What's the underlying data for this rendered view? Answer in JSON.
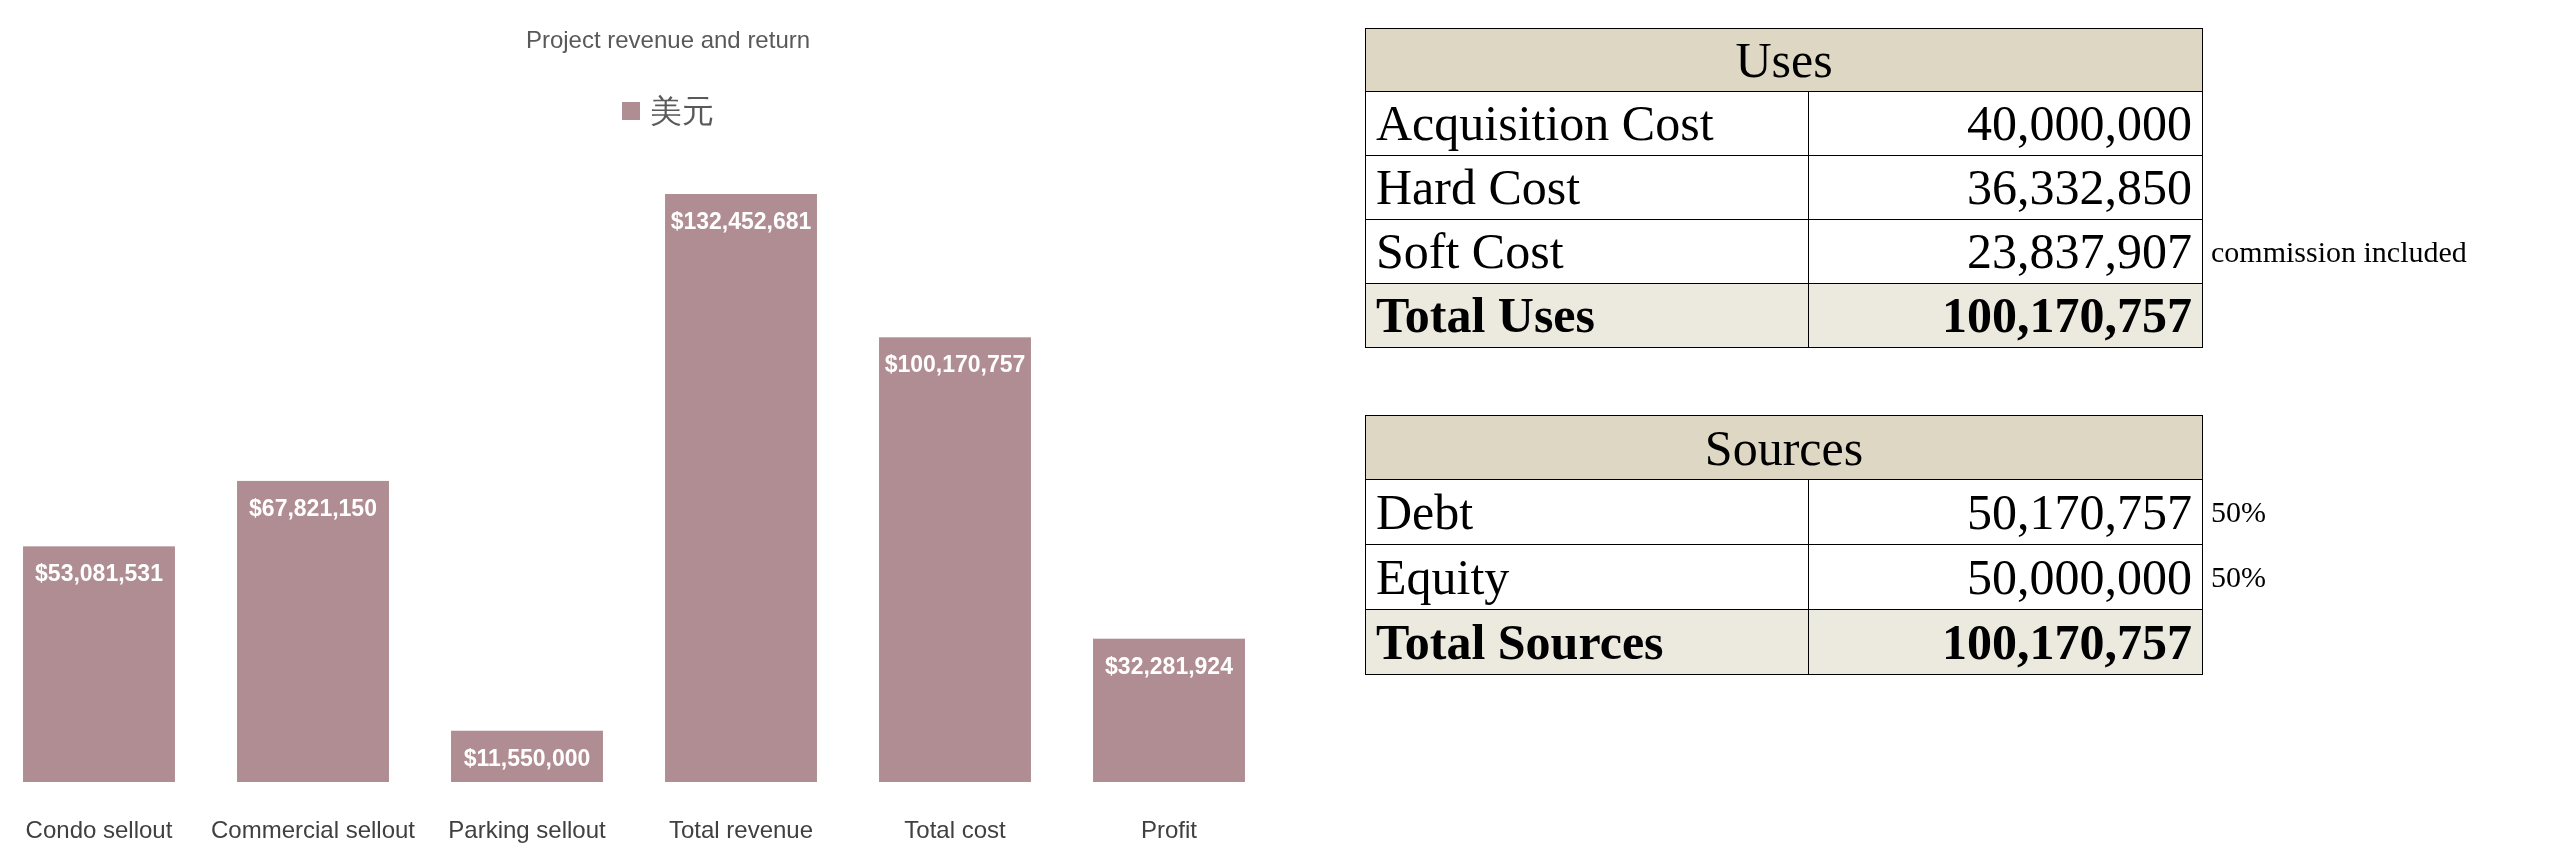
{
  "chart_data": [
    {
      "type": "bar",
      "title": "Project revenue and return",
      "categories": [
        "Condo sellout",
        "Commercial sellout",
        "Parking sellout",
        "Total revenue",
        "Total cost",
        "Profit"
      ],
      "series": [
        {
          "name": "美元",
          "color": "#b08d92",
          "values": [
            53081531,
            67821150,
            11550000,
            132452681,
            100170757,
            32281924
          ],
          "value_labels": [
            "$53,081,531",
            "$67,821,150",
            "$11,550,000",
            "$132,452,681",
            "$100,170,757",
            "$32,281,924"
          ]
        }
      ],
      "legend": "top"
    },
    {
      "type": "other",
      "title": "Uses",
      "categories": [
        "Acquisition Cost",
        "Hard Cost",
        "Soft Cost",
        "Total Uses"
      ],
      "value_labels": [
        "40,000,000",
        "36,332,850",
        "23,837,907",
        "100,170,757"
      ],
      "annotations": [
        {
          "text": "commission included",
          "y": "Soft Cost"
        }
      ]
    },
    {
      "type": "other",
      "title": "Sources",
      "categories": [
        "Debt",
        "Equity",
        "Total Sources"
      ],
      "value_labels": [
        "50,170,757",
        "50,000,000",
        "100,170,757"
      ],
      "annotations": [
        {
          "text": "50%",
          "y": "Debt"
        },
        {
          "text": "50%",
          "y": "Equity"
        }
      ]
    }
  ]
}
